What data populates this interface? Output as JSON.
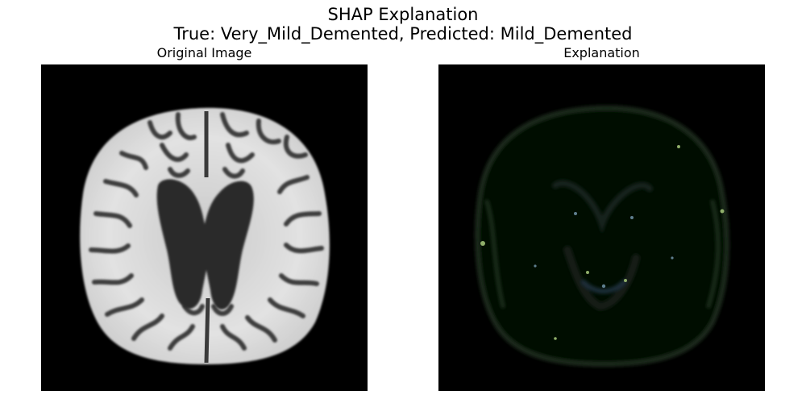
{
  "figure": {
    "title_line1": "SHAP Explanation",
    "title_line2": "True: Very_Mild_Demented, Predicted: Mild_Demented"
  },
  "panels": [
    {
      "title": "Original Image"
    },
    {
      "title": "Explanation"
    }
  ]
}
